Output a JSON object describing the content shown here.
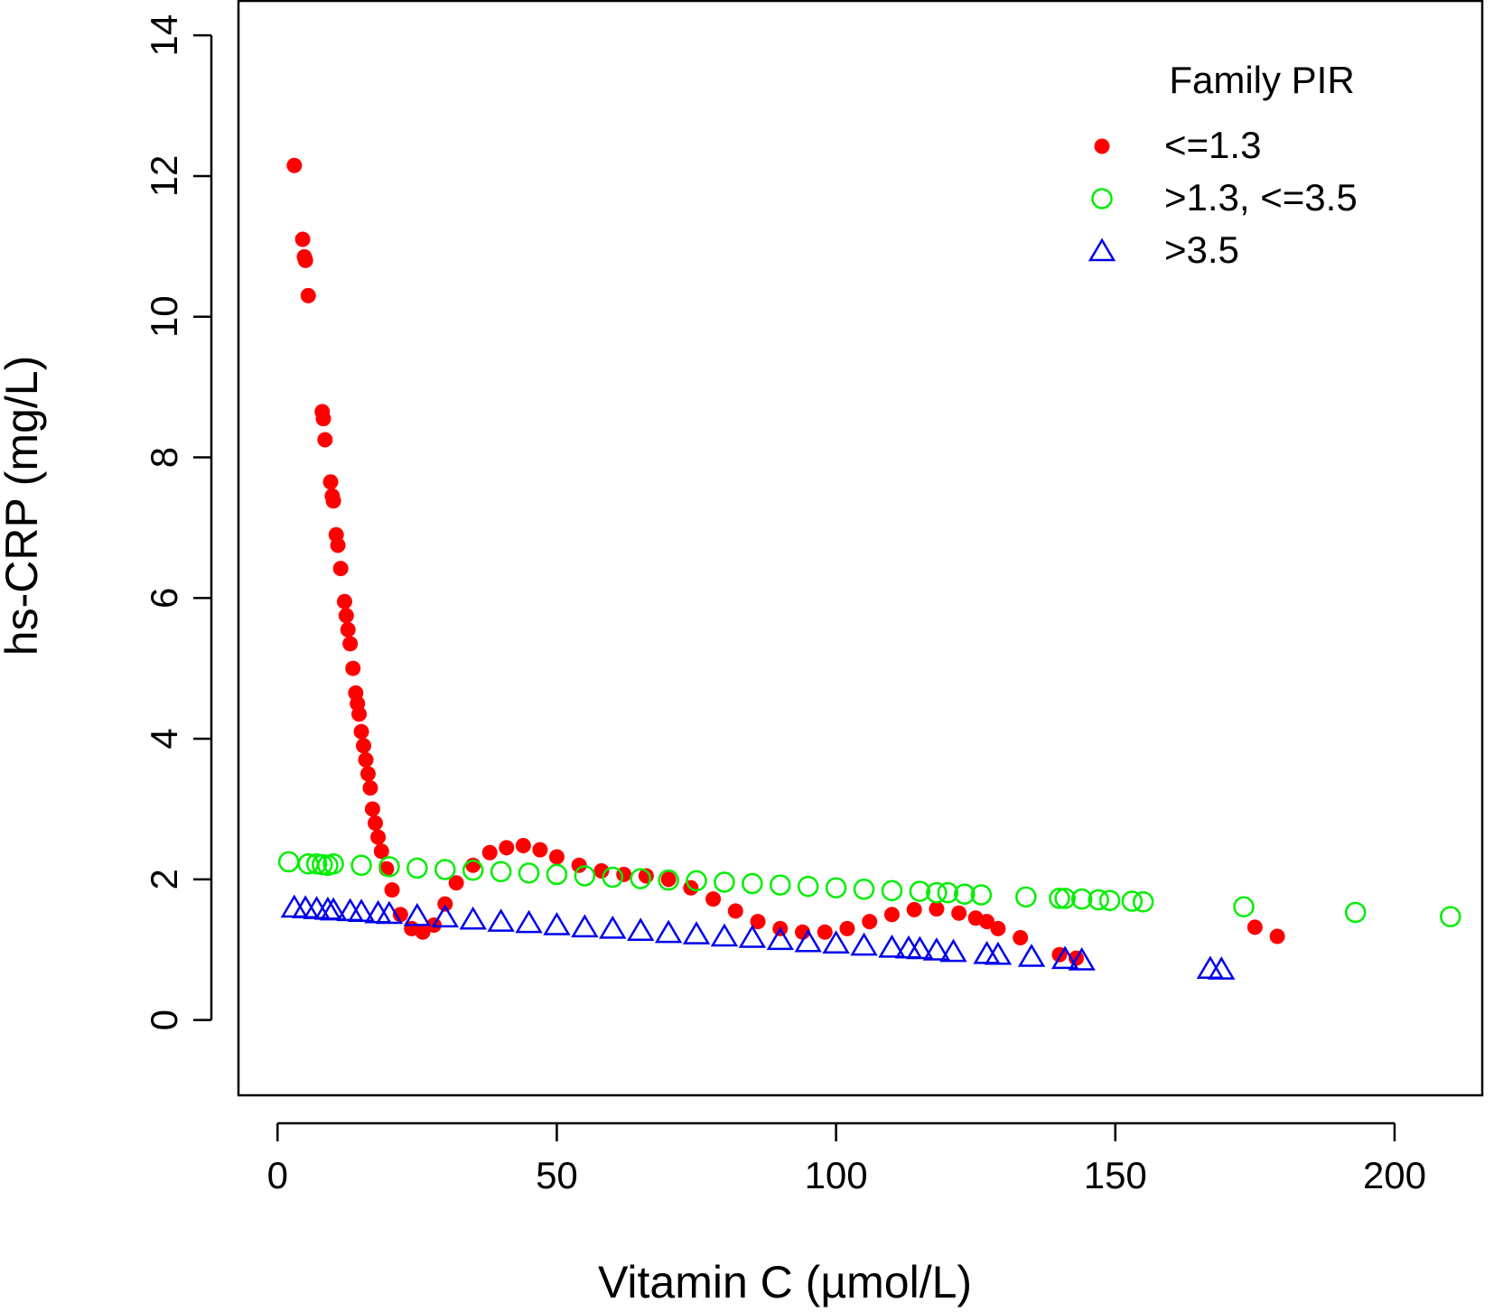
{
  "chart_data": {
    "type": "scatter",
    "x_label": "Vitamin C (µmol/L)",
    "y_label": "hs-CRP (mg/L)",
    "legend_title": "Family PIR",
    "legend": "topright",
    "xlim": [
      -7,
      215.7
    ],
    "ylim": [
      -1.07,
      14.49
    ],
    "xticks": [
      0,
      50,
      100,
      150,
      200
    ],
    "yticks": [
      0,
      2,
      4,
      6,
      8,
      10,
      12,
      14
    ],
    "series": [
      {
        "name": "<=1.3",
        "color": "#ff0000",
        "marker": "dot",
        "x": [
          3,
          4.5,
          4.8,
          5,
          5.5,
          8,
          8.2,
          8.5,
          9.5,
          9.8,
          10,
          10.5,
          10.8,
          11.3,
          12,
          12.3,
          12.6,
          13,
          13.5,
          14,
          14.3,
          14.6,
          15,
          15.4,
          15.8,
          16.2,
          16.6,
          17,
          17.5,
          18,
          18.6,
          19.5,
          20.5,
          22,
          24,
          26,
          28,
          30,
          32,
          35,
          38,
          41,
          44,
          47,
          50,
          54,
          58,
          62,
          66,
          70,
          74,
          78,
          82,
          86,
          90,
          94,
          98,
          102,
          106,
          110,
          114,
          118,
          122,
          125,
          127,
          129,
          133,
          140,
          143,
          175,
          179
        ],
        "values": [
          12.15,
          11.1,
          10.85,
          10.8,
          10.3,
          8.65,
          8.55,
          8.25,
          7.65,
          7.45,
          7.38,
          6.9,
          6.75,
          6.42,
          5.95,
          5.75,
          5.55,
          5.35,
          5.0,
          4.65,
          4.5,
          4.35,
          4.1,
          3.9,
          3.7,
          3.5,
          3.3,
          3.0,
          2.8,
          2.6,
          2.4,
          2.15,
          1.85,
          1.5,
          1.3,
          1.25,
          1.35,
          1.65,
          1.95,
          2.2,
          2.38,
          2.45,
          2.48,
          2.42,
          2.32,
          2.2,
          2.12,
          2.07,
          2.05,
          2.0,
          1.88,
          1.72,
          1.55,
          1.4,
          1.3,
          1.25,
          1.25,
          1.3,
          1.4,
          1.5,
          1.57,
          1.58,
          1.52,
          1.45,
          1.4,
          1.3,
          1.17,
          0.93,
          0.88,
          1.32,
          1.19
        ]
      },
      {
        "name": ">1.3, <=3.5",
        "color": "#00ee00",
        "marker": "circle",
        "x": [
          2,
          5.5,
          7,
          8,
          9,
          10,
          15,
          20,
          25,
          30,
          35,
          40,
          45,
          50,
          55,
          60,
          65,
          70,
          75,
          80,
          85,
          90,
          95,
          100,
          105,
          110,
          115,
          118,
          120,
          123,
          126,
          134,
          140,
          141,
          144,
          147,
          149,
          153,
          155,
          173,
          193,
          210
        ],
        "values": [
          2.25,
          2.22,
          2.22,
          2.21,
          2.2,
          2.22,
          2.2,
          2.18,
          2.16,
          2.14,
          2.13,
          2.11,
          2.09,
          2.07,
          2.05,
          2.03,
          2.01,
          1.99,
          1.98,
          1.96,
          1.94,
          1.92,
          1.9,
          1.88,
          1.86,
          1.84,
          1.83,
          1.81,
          1.81,
          1.79,
          1.78,
          1.75,
          1.73,
          1.73,
          1.72,
          1.71,
          1.7,
          1.69,
          1.68,
          1.61,
          1.53,
          1.47
        ]
      },
      {
        "name": ">3.5",
        "color": "#0000ee",
        "marker": "triangle",
        "x": [
          3,
          5,
          7,
          9,
          10,
          13,
          15,
          18,
          20,
          25,
          30,
          35,
          40,
          45,
          50,
          55,
          60,
          65,
          70,
          75,
          80,
          85,
          90,
          95,
          100,
          105,
          110,
          113,
          115,
          118,
          121,
          127,
          129,
          135,
          141,
          144,
          167,
          169
        ],
        "values": [
          1.6,
          1.59,
          1.58,
          1.57,
          1.56,
          1.55,
          1.54,
          1.52,
          1.51,
          1.48,
          1.46,
          1.43,
          1.4,
          1.38,
          1.35,
          1.32,
          1.3,
          1.27,
          1.24,
          1.22,
          1.19,
          1.17,
          1.14,
          1.11,
          1.09,
          1.06,
          1.03,
          1.02,
          1.01,
          0.99,
          0.97,
          0.94,
          0.93,
          0.9,
          0.87,
          0.85,
          0.73,
          0.72
        ]
      }
    ]
  }
}
